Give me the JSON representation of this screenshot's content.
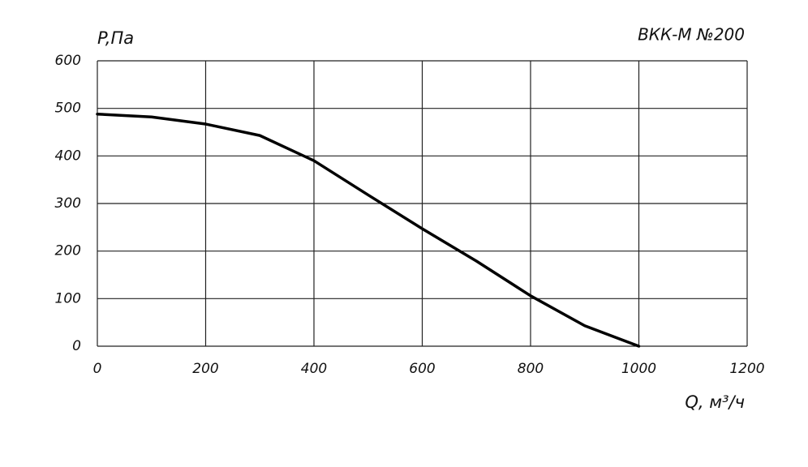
{
  "chart_data": {
    "type": "line",
    "title": "ВКК-М №200",
    "y_label": "P,Па",
    "x_label": "Q, м³/ч",
    "x": [
      0,
      100,
      200,
      300,
      400,
      500,
      600,
      700,
      800,
      900,
      1000
    ],
    "series": [
      {
        "color": "#000000",
        "values": [
          488,
          482,
          467,
          443,
          390,
          318,
          247,
          179,
          106,
          43,
          0
        ]
      }
    ],
    "xlim": [
      0,
      1200
    ],
    "xticks": [
      0,
      200,
      400,
      600,
      800,
      1000,
      1200
    ],
    "ylim": [
      0,
      600
    ],
    "yticks": [
      0,
      100,
      200,
      300,
      400,
      500,
      600
    ],
    "grid": true
  }
}
